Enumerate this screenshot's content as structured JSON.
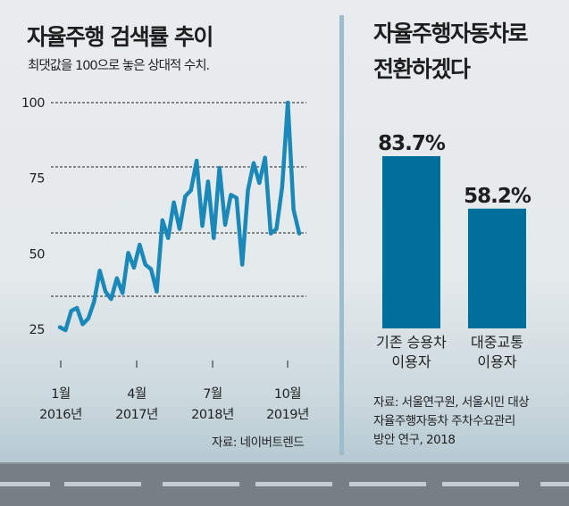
{
  "chart_data": [
    {
      "type": "line",
      "title": "자율주행 검색률 추이",
      "subtitle": "최댓값을 100으로 놓은 상대적 수치.",
      "yticks": [
        100,
        75,
        50,
        25
      ],
      "ylim": [
        25,
        100
      ],
      "xticks": [
        {
          "month": "1월",
          "year": "2016년"
        },
        {
          "month": "4월",
          "year": "2017년"
        },
        {
          "month": "7월",
          "year": "2018년"
        },
        {
          "month": "10월",
          "year": "2019년"
        }
      ],
      "grid": true,
      "source": "자료: 네이버트렌드",
      "color": "#1a88b8",
      "values": [
        25.7,
        24.7,
        31.1,
        32.1,
        26.7,
        28.6,
        34.1,
        44.4,
        37.5,
        35,
        41.9,
        37,
        50.3,
        45.4,
        53,
        46.4,
        44.9,
        37.5,
        61.1,
        55.2,
        67,
        58.2,
        69,
        71,
        80.8,
        59.2,
        73.9,
        55.2,
        78.4,
        59.6,
        69.5,
        68.5,
        46.4,
        71,
        80,
        73.4,
        81.8,
        56.7,
        58.2,
        72,
        100,
        64.6,
        56.7
      ]
    },
    {
      "type": "bar",
      "title": "자율주행자동차로 전환하겠다",
      "title_lines": [
        "자율주행자동차로",
        "전환하겠다"
      ],
      "categories": [
        {
          "line1": "기존 승용차",
          "line2": "이용자"
        },
        {
          "line1": "대중교통",
          "line2": "이용자"
        }
      ],
      "values": [
        83.7,
        58.2
      ],
      "labels": [
        "83.7%",
        "58.2%"
      ],
      "unit": "%",
      "color": "#006f9b",
      "source_lines": [
        "자료: 서울연구원, 서울시민 대상",
        "자율주행자동차 주차수요관리",
        "방안 연구, 2018"
      ]
    }
  ]
}
